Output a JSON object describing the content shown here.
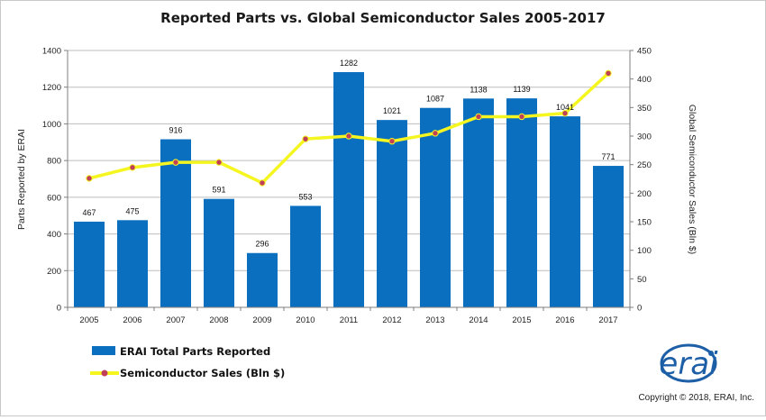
{
  "chart_data": {
    "type": "bar",
    "title": "Reported Parts vs. Global Semiconductor Sales 2005-2017",
    "categories": [
      "2005",
      "2006",
      "2007",
      "2008",
      "2009",
      "2010",
      "2011",
      "2012",
      "2013",
      "2014",
      "2015",
      "2016",
      "2017"
    ],
    "ylabel": "Parts Reported by ERAI",
    "y2label": "Global Semiconductor Sales (Bln $)",
    "ylim": [
      0,
      1400
    ],
    "y2lim": [
      0,
      450
    ],
    "yticks": [
      "0",
      "200",
      "400",
      "600",
      "800",
      "1000",
      "1200",
      "1400"
    ],
    "y2ticks": [
      "0",
      "50",
      "100",
      "150",
      "200",
      "250",
      "300",
      "350",
      "400",
      "450"
    ],
    "grid": true,
    "legend_position": "bottom-left",
    "series": [
      {
        "name": "ERAI Total Parts Reported",
        "type": "bar",
        "axis": "left",
        "color": "#0b6fc0",
        "values": [
          467,
          475,
          916,
          591,
          296,
          553,
          1282,
          1021,
          1087,
          1138,
          1139,
          1041,
          771
        ],
        "labels": [
          "467",
          "475",
          "916",
          "591",
          "296",
          "553",
          "1282",
          "1021",
          "1087",
          "1138",
          "1139",
          "1041",
          "771"
        ]
      },
      {
        "name": "Semiconductor Sales (Bln $)",
        "type": "line",
        "axis": "right",
        "color": "#f5f520",
        "marker_color": "#c0405a",
        "values": [
          226,
          245,
          254,
          254,
          218,
          295,
          300,
          291,
          305,
          334,
          334,
          340,
          410
        ]
      }
    ]
  },
  "footer": {
    "logo_text": "erai",
    "copyright": "Copyright © 2018, ERAI, Inc."
  }
}
